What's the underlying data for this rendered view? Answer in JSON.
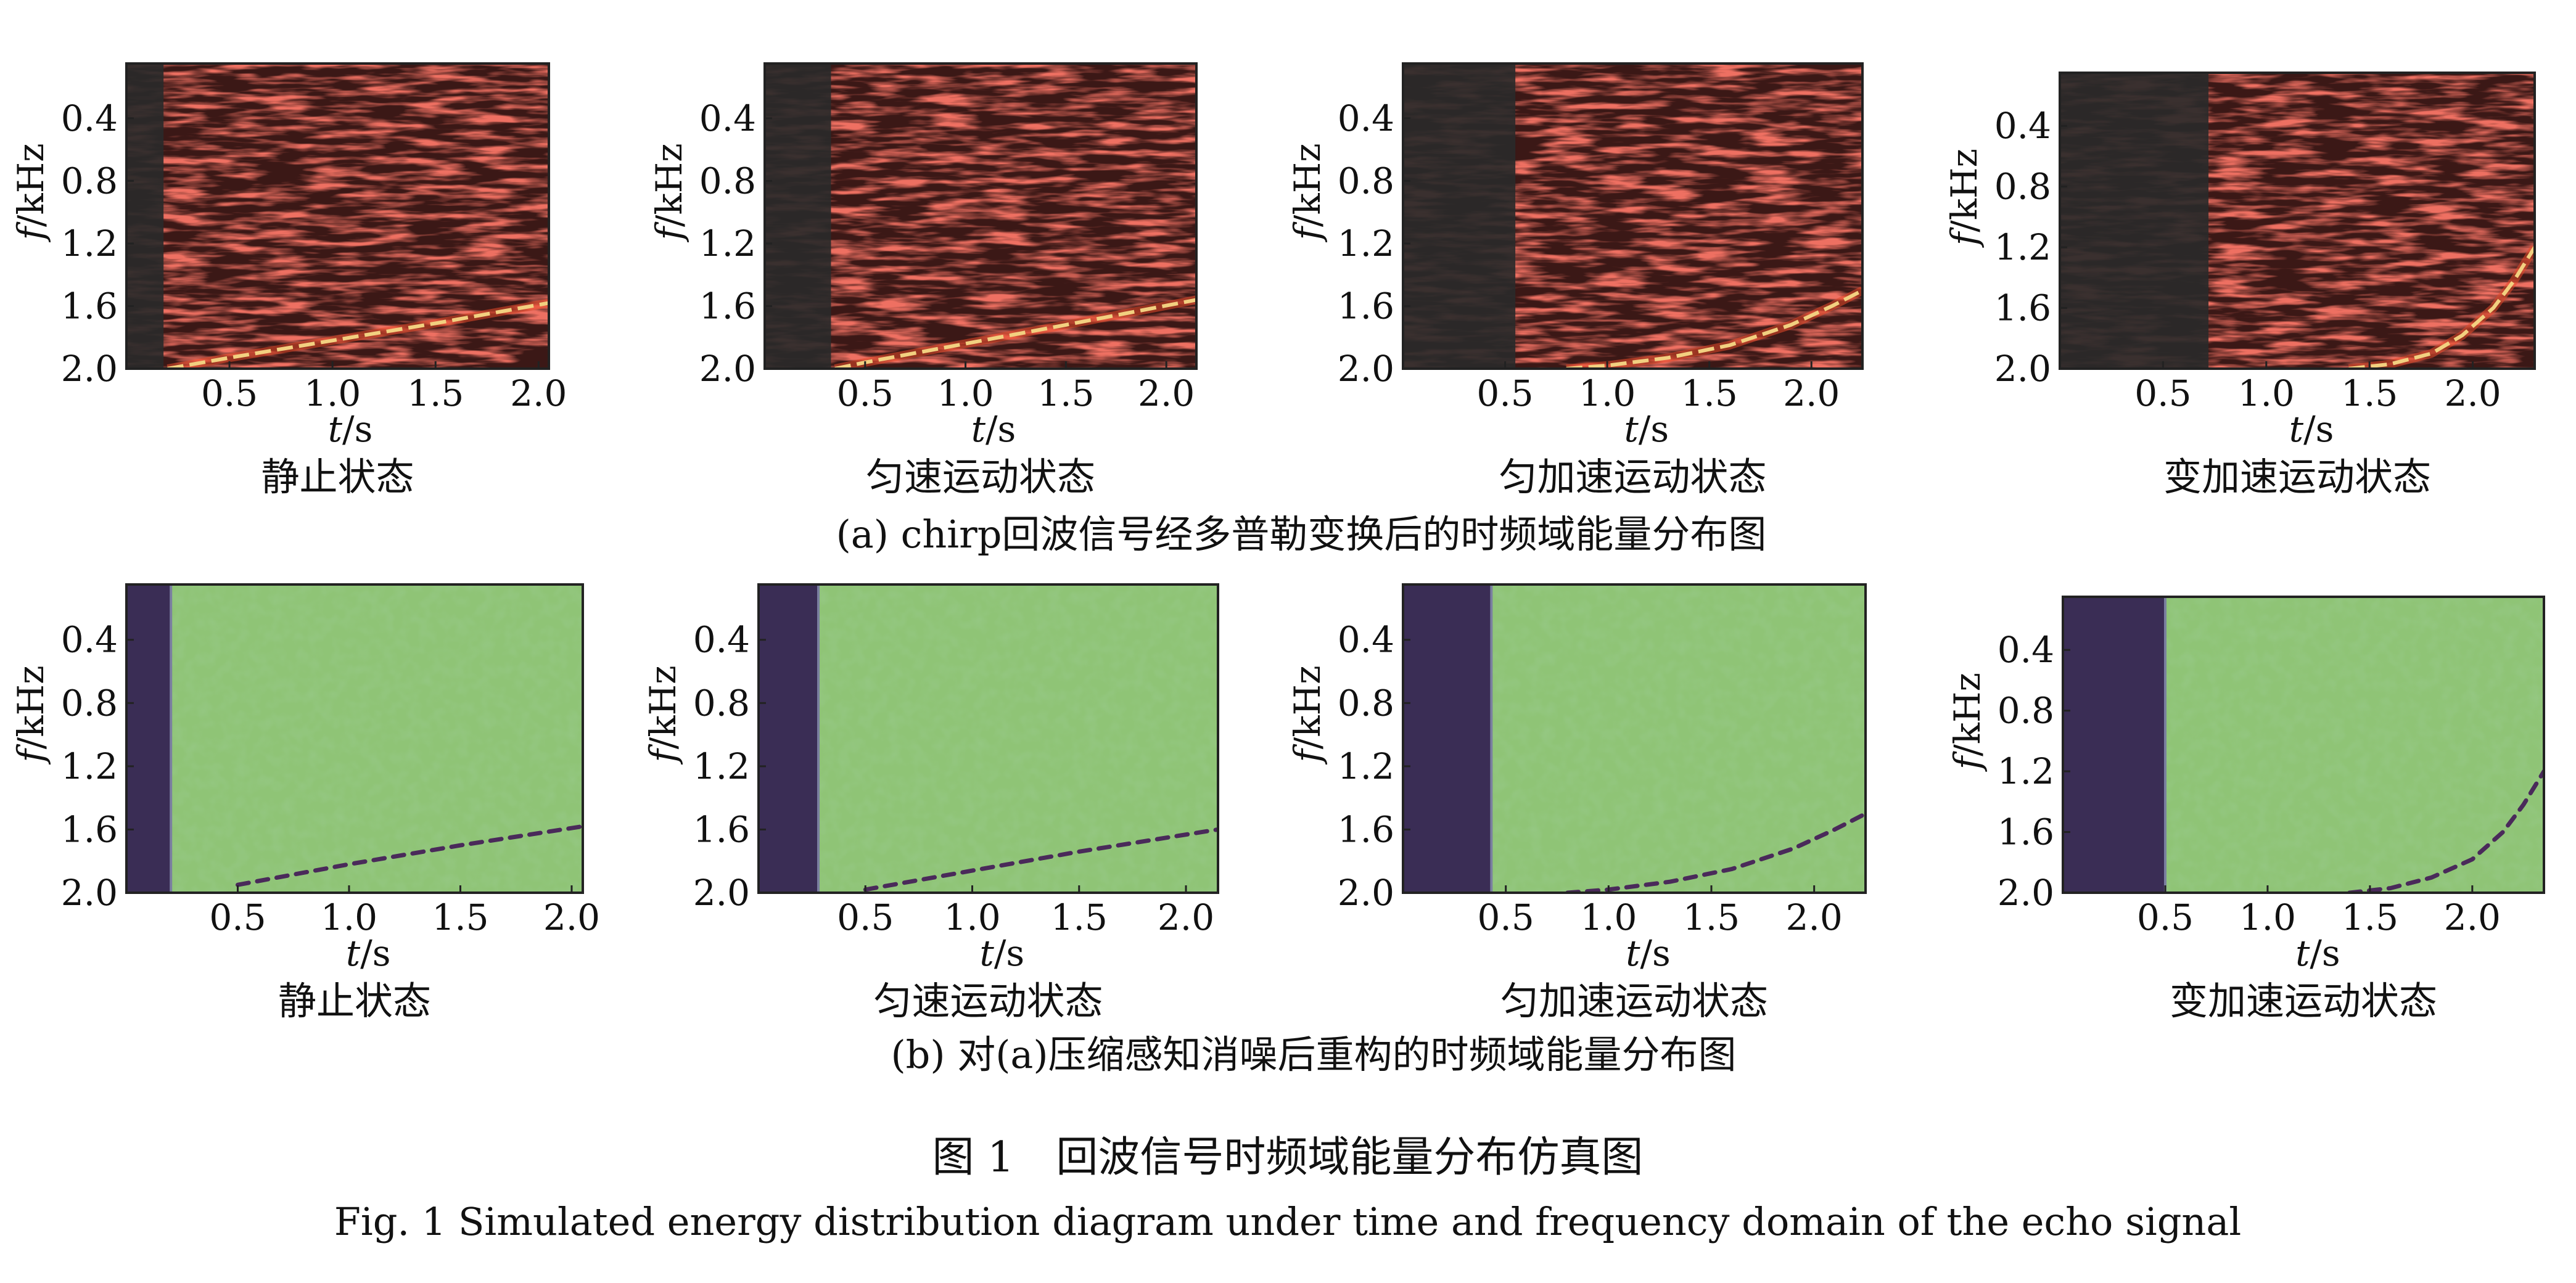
{
  "figure": {
    "title_cn": "图 1　回波信号时频域能量分布仿真图",
    "title_en": "Fig. 1   Simulated energy distribution diagram under time and frequency domain of the echo signal"
  },
  "groups": [
    {
      "id": "a",
      "caption": "(a) chirp回波信号经多普勒变换后的时频域能量分布图",
      "style": "raw"
    },
    {
      "id": "b",
      "caption": "(b) 对(a)压缩感知消噪后重构的时频域能量分布图",
      "style": "reconstructed"
    }
  ],
  "colors": {
    "raw_bg": "#3b1816",
    "raw_speckle": "#c9302a",
    "raw_dark_band": "#2a2a2a",
    "raw_trace": "#f2d080",
    "rec_bg": "#8fc476",
    "rec_dark_band": "#3a2d55",
    "rec_trace": "#4a2a5a"
  },
  "chart_data": [
    {
      "type": "heatmap",
      "group": "a",
      "caption": "静止状态",
      "xlabel_italic": "t",
      "xlabel_unit": "/s",
      "ylabel_italic": "f",
      "ylabel_unit": "/kHz",
      "xticks": [
        "0.5",
        "1.0",
        "1.5",
        "2.0"
      ],
      "xtick_values": [
        0.5,
        1.0,
        1.5,
        2.0
      ],
      "yticks": [
        "0.4",
        "0.8",
        "1.2",
        "1.6",
        "2.0"
      ],
      "ytick_values": [
        0.4,
        0.8,
        1.2,
        1.6,
        2.0
      ],
      "xlim": [
        0.0,
        2.05
      ],
      "ylim": [
        2.0,
        0.05
      ],
      "dark_band_until_s": 0.18,
      "trace": {
        "x": [
          0.2,
          0.5,
          1.0,
          1.5,
          2.05
        ],
        "y": [
          2.0,
          1.93,
          1.82,
          1.71,
          1.58
        ]
      }
    },
    {
      "type": "heatmap",
      "group": "a",
      "caption": "匀速运动状态",
      "xlabel_italic": "t",
      "xlabel_unit": "/s",
      "ylabel_italic": "f",
      "ylabel_unit": "/kHz",
      "xticks": [
        "0.5",
        "1.0",
        "1.5",
        "2.0"
      ],
      "xtick_values": [
        0.5,
        1.0,
        1.5,
        2.0
      ],
      "yticks": [
        "0.4",
        "0.8",
        "1.2",
        "1.6",
        "2.0"
      ],
      "ytick_values": [
        0.4,
        0.8,
        1.2,
        1.6,
        2.0
      ],
      "xlim": [
        0.0,
        2.15
      ],
      "ylim": [
        2.0,
        0.05
      ],
      "dark_band_until_s": 0.33,
      "trace": {
        "x": [
          0.35,
          0.5,
          1.0,
          1.5,
          2.15
        ],
        "y": [
          2.0,
          1.96,
          1.84,
          1.72,
          1.56
        ]
      }
    },
    {
      "type": "heatmap",
      "group": "a",
      "caption": "匀加速运动状态",
      "xlabel_italic": "t",
      "xlabel_unit": "/s",
      "ylabel_italic": "f",
      "ylabel_unit": "/kHz",
      "xticks": [
        "0.5",
        "1.0",
        "1.5",
        "2.0"
      ],
      "xtick_values": [
        0.5,
        1.0,
        1.5,
        2.0
      ],
      "yticks": [
        "0.4",
        "0.8",
        "1.2",
        "1.6",
        "2.0"
      ],
      "ytick_values": [
        0.4,
        0.8,
        1.2,
        1.6,
        2.0
      ],
      "xlim": [
        0.0,
        2.25
      ],
      "ylim": [
        2.0,
        0.05
      ],
      "dark_band_until_s": 0.55,
      "trace": {
        "x": [
          0.8,
          1.0,
          1.3,
          1.6,
          1.9,
          2.1,
          2.25
        ],
        "y": [
          2.0,
          1.98,
          1.93,
          1.85,
          1.72,
          1.6,
          1.5
        ]
      }
    },
    {
      "type": "heatmap",
      "group": "a",
      "caption": "变加速运动状态",
      "xlabel_italic": "t",
      "xlabel_unit": "/s",
      "ylabel_italic": "f",
      "ylabel_unit": "/kHz",
      "xticks": [
        "0.5",
        "1.0",
        "1.5",
        "2.0"
      ],
      "xtick_values": [
        0.5,
        1.0,
        1.5,
        2.0
      ],
      "yticks": [
        "0.4",
        "0.8",
        "1.2",
        "1.6",
        "2.0"
      ],
      "ytick_values": [
        0.4,
        0.8,
        1.2,
        1.6,
        2.0
      ],
      "xlim": [
        0.0,
        2.3
      ],
      "ylim": [
        2.0,
        0.05
      ],
      "dark_band_until_s": 0.72,
      "trace": {
        "x": [
          1.4,
          1.6,
          1.8,
          1.95,
          2.1,
          2.2,
          2.3
        ],
        "y": [
          2.0,
          1.97,
          1.9,
          1.78,
          1.6,
          1.42,
          1.2
        ]
      }
    },
    {
      "type": "heatmap",
      "group": "b",
      "caption": "静止状态",
      "xlabel_italic": "t",
      "xlabel_unit": "/s",
      "ylabel_italic": "f",
      "ylabel_unit": "/kHz",
      "xticks": [
        "0.5",
        "1.0",
        "1.5",
        "2.0"
      ],
      "xtick_values": [
        0.5,
        1.0,
        1.5,
        2.0
      ],
      "yticks": [
        "0.4",
        "0.8",
        "1.2",
        "1.6",
        "2.0"
      ],
      "ytick_values": [
        0.4,
        0.8,
        1.2,
        1.6,
        2.0
      ],
      "xlim": [
        0.0,
        2.05
      ],
      "ylim": [
        2.0,
        0.05
      ],
      "dark_band_until_s": 0.2,
      "trace": {
        "x": [
          0.5,
          1.0,
          1.5,
          2.05
        ],
        "y": [
          1.95,
          1.82,
          1.7,
          1.58
        ]
      }
    },
    {
      "type": "heatmap",
      "group": "b",
      "caption": "匀速运动状态",
      "xlabel_italic": "t",
      "xlabel_unit": "/s",
      "ylabel_italic": "f",
      "ylabel_unit": "/kHz",
      "xticks": [
        "0.5",
        "1.0",
        "1.5",
        "2.0"
      ],
      "xtick_values": [
        0.5,
        1.0,
        1.5,
        2.0
      ],
      "yticks": [
        "0.4",
        "0.8",
        "1.2",
        "1.6",
        "2.0"
      ],
      "ytick_values": [
        0.4,
        0.8,
        1.2,
        1.6,
        2.0
      ],
      "xlim": [
        0.0,
        2.15
      ],
      "ylim": [
        2.0,
        0.05
      ],
      "dark_band_until_s": 0.28,
      "trace": {
        "x": [
          0.5,
          1.0,
          1.5,
          2.15
        ],
        "y": [
          1.98,
          1.86,
          1.74,
          1.6
        ]
      }
    },
    {
      "type": "heatmap",
      "group": "b",
      "caption": "匀加速运动状态",
      "xlabel_italic": "t",
      "xlabel_unit": "/s",
      "ylabel_italic": "f",
      "ylabel_unit": "/kHz",
      "xticks": [
        "0.5",
        "1.0",
        "1.5",
        "2.0"
      ],
      "xtick_values": [
        0.5,
        1.0,
        1.5,
        2.0
      ],
      "yticks": [
        "0.4",
        "0.8",
        "1.2",
        "1.6",
        "2.0"
      ],
      "ytick_values": [
        0.4,
        0.8,
        1.2,
        1.6,
        2.0
      ],
      "xlim": [
        0.0,
        2.25
      ],
      "ylim": [
        2.0,
        0.05
      ],
      "dark_band_until_s": 0.43,
      "trace": {
        "x": [
          0.8,
          1.0,
          1.3,
          1.6,
          1.9,
          2.1,
          2.25
        ],
        "y": [
          2.0,
          1.98,
          1.93,
          1.85,
          1.72,
          1.6,
          1.5
        ]
      }
    },
    {
      "type": "heatmap",
      "group": "b",
      "caption": "变加速运动状态",
      "xlabel_italic": "t",
      "xlabel_unit": "/s",
      "ylabel_italic": "f",
      "ylabel_unit": "/kHz",
      "xticks": [
        "0.5",
        "1.0",
        "1.5",
        "2.0"
      ],
      "xtick_values": [
        0.5,
        1.0,
        1.5,
        2.0
      ],
      "yticks": [
        "0.4",
        "0.8",
        "1.2",
        "1.6",
        "2.0"
      ],
      "ytick_values": [
        0.4,
        0.8,
        1.2,
        1.6,
        2.0
      ],
      "xlim": [
        0.0,
        2.35
      ],
      "ylim": [
        2.0,
        0.05
      ],
      "dark_band_until_s": 0.5,
      "trace": {
        "x": [
          1.4,
          1.6,
          1.8,
          2.0,
          2.15,
          2.25,
          2.35
        ],
        "y": [
          2.0,
          1.97,
          1.9,
          1.78,
          1.6,
          1.42,
          1.2
        ]
      }
    }
  ]
}
